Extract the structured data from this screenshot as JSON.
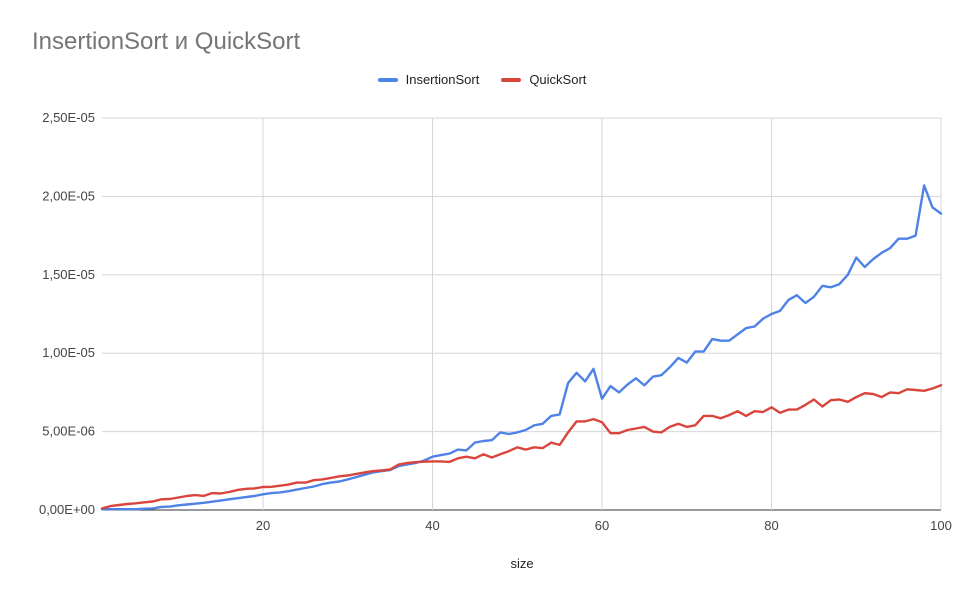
{
  "title": "InsertionSort и QuickSort",
  "chart_data": {
    "type": "line",
    "title": "InsertionSort и QuickSort",
    "xlabel": "size",
    "ylabel": "",
    "xlim": [
      1,
      100
    ],
    "ylim": [
      0,
      2.5e-05
    ],
    "x_ticks": [
      20,
      40,
      60,
      80,
      100
    ],
    "x_tick_labels": [
      "20",
      "40",
      "60",
      "80",
      "100"
    ],
    "y_ticks": [
      0,
      5e-06,
      1e-05,
      1.5e-05,
      2e-05,
      2.5e-05
    ],
    "y_tick_labels": [
      "0,00E+00",
      "5,00E-06",
      "1,00E-05",
      "1,50E-05",
      "2,00E-05",
      "2,50E-05"
    ],
    "grid": true,
    "legend_position": "top-center",
    "x": [
      1,
      2,
      3,
      4,
      5,
      6,
      7,
      8,
      9,
      10,
      11,
      12,
      13,
      14,
      15,
      16,
      17,
      18,
      19,
      20,
      21,
      22,
      23,
      24,
      25,
      26,
      27,
      28,
      29,
      30,
      31,
      32,
      33,
      34,
      35,
      36,
      37,
      38,
      39,
      40,
      41,
      42,
      43,
      44,
      45,
      46,
      47,
      48,
      49,
      50,
      51,
      52,
      53,
      54,
      55,
      56,
      57,
      58,
      59,
      60,
      61,
      62,
      63,
      64,
      65,
      66,
      67,
      68,
      69,
      70,
      71,
      72,
      73,
      74,
      75,
      76,
      77,
      78,
      79,
      80,
      81,
      82,
      83,
      84,
      85,
      86,
      87,
      88,
      89,
      90,
      91,
      92,
      93,
      94,
      95,
      96,
      97,
      98,
      99,
      100
    ],
    "series": [
      {
        "name": "InsertionSort",
        "color": "#4e82e6",
        "values": [
          5e-08,
          5e-08,
          5e-08,
          5e-08,
          5e-08,
          8e-08,
          1e-07,
          2e-07,
          2.2e-07,
          3e-07,
          3.5e-07,
          4e-07,
          4.6e-07,
          5.3e-07,
          6e-07,
          6.8e-07,
          7.5e-07,
          8.2e-07,
          8.9e-07,
          1e-06,
          1.08e-06,
          1.12e-06,
          1.2e-06,
          1.3e-06,
          1.4e-06,
          1.5e-06,
          1.65e-06,
          1.75e-06,
          1.82e-06,
          1.95e-06,
          2.1e-06,
          2.25e-06,
          2.4e-06,
          2.48e-06,
          2.55e-06,
          2.8e-06,
          2.9e-06,
          3e-06,
          3.15e-06,
          3.4e-06,
          3.5e-06,
          3.6e-06,
          3.85e-06,
          3.8e-06,
          4.3e-06,
          4.4e-06,
          4.45e-06,
          4.95e-06,
          4.85e-06,
          4.95e-06,
          5.1e-06,
          5.4e-06,
          5.5e-06,
          6e-06,
          6.1e-06,
          8.1e-06,
          8.75e-06,
          8.2e-06,
          9e-06,
          7.1e-06,
          7.9e-06,
          7.5e-06,
          8e-06,
          8.4e-06,
          7.95e-06,
          8.5e-06,
          8.6e-06,
          9.1e-06,
          9.7e-06,
          9.4e-06,
          1.01e-05,
          1.01e-05,
          1.09e-05,
          1.08e-05,
          1.08e-05,
          1.12e-05,
          1.16e-05,
          1.17e-05,
          1.22e-05,
          1.25e-05,
          1.27e-05,
          1.34e-05,
          1.37e-05,
          1.32e-05,
          1.36e-05,
          1.43e-05,
          1.42e-05,
          1.44e-05,
          1.5e-05,
          1.61e-05,
          1.55e-05,
          1.6e-05,
          1.64e-05,
          1.67e-05,
          1.73e-05,
          1.73e-05,
          1.75e-05,
          2.07e-05,
          1.93e-05,
          1.89e-05
        ]
      },
      {
        "name": "QuickSort",
        "color": "#d9453d",
        "values": [
          1e-07,
          2.5e-07,
          3.2e-07,
          3.8e-07,
          4.3e-07,
          4.9e-07,
          5.4e-07,
          6.8e-07,
          7e-07,
          8e-07,
          8.9e-07,
          9.5e-07,
          9e-07,
          1.08e-06,
          1.05e-06,
          1.15e-06,
          1.28e-06,
          1.35e-06,
          1.38e-06,
          1.47e-06,
          1.48e-06,
          1.55e-06,
          1.62e-06,
          1.75e-06,
          1.75e-06,
          1.9e-06,
          1.95e-06,
          2.05e-06,
          2.15e-06,
          2.2e-06,
          2.3e-06,
          2.4e-06,
          2.48e-06,
          2.52e-06,
          2.58e-06,
          2.9e-06,
          3e-06,
          3.05e-06,
          3.08e-06,
          3.1e-06,
          3.1e-06,
          3.07e-06,
          3.3e-06,
          3.4e-06,
          3.3e-06,
          3.55e-06,
          3.35e-06,
          3.55e-06,
          3.75e-06,
          4e-06,
          3.85e-06,
          4e-06,
          3.95e-06,
          4.3e-06,
          4.15e-06,
          4.95e-06,
          5.65e-06,
          5.65e-06,
          5.8e-06,
          5.6e-06,
          4.9e-06,
          4.9e-06,
          5.1e-06,
          5.2e-06,
          5.3e-06,
          5e-06,
          4.95e-06,
          5.3e-06,
          5.5e-06,
          5.3e-06,
          5.4e-06,
          6e-06,
          6e-06,
          5.85e-06,
          6.05e-06,
          6.3e-06,
          6e-06,
          6.3e-06,
          6.25e-06,
          6.55e-06,
          6.2e-06,
          6.4e-06,
          6.4e-06,
          6.7e-06,
          7.05e-06,
          6.6e-06,
          7e-06,
          7.05e-06,
          6.9e-06,
          7.2e-06,
          7.45e-06,
          7.4e-06,
          7.2e-06,
          7.5e-06,
          7.45e-06,
          7.7e-06,
          7.65e-06,
          7.6e-06,
          7.75e-06,
          7.95e-06
        ]
      }
    ]
  }
}
